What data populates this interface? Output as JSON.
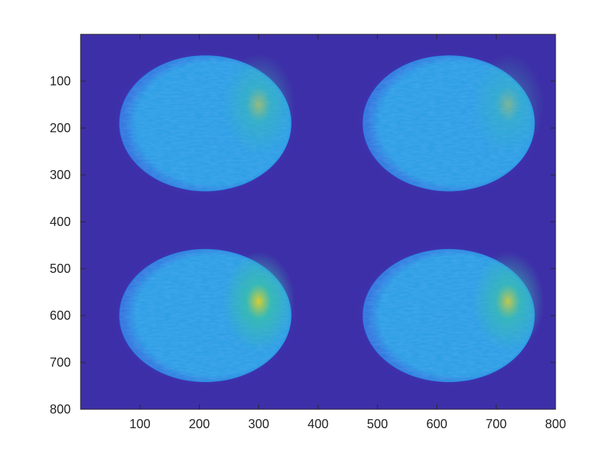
{
  "chart_data": {
    "type": "heatmap",
    "title": "",
    "xlabel": "",
    "ylabel": "",
    "xlim": [
      0,
      800
    ],
    "ylim": [
      0,
      800
    ],
    "y_reversed": true,
    "xticks": [
      "100",
      "200",
      "300",
      "400",
      "500",
      "600",
      "700",
      "800"
    ],
    "yticks": [
      "100",
      "200",
      "300",
      "400",
      "500",
      "600",
      "700",
      "800"
    ],
    "colormap": "parula",
    "colors": {
      "background": "#3d2fa8",
      "low": "#3b4fd9",
      "mid": "#2f9fe6",
      "high_teal": "#38c0a8",
      "peak": "#e2d02a",
      "axis": "#262626"
    },
    "spots": [
      {
        "name": "top-left-spot",
        "cx": 210,
        "cy": 190,
        "rx": 145,
        "ry": 145,
        "peak_x": 300,
        "peak_y": 150,
        "peak_intensity": 0.55
      },
      {
        "name": "top-right-spot",
        "cx": 620,
        "cy": 190,
        "rx": 145,
        "ry": 145,
        "peak_x": 720,
        "peak_y": 150,
        "peak_intensity": 0.4
      },
      {
        "name": "bottom-left-spot",
        "cx": 210,
        "cy": 600,
        "rx": 145,
        "ry": 142,
        "peak_x": 300,
        "peak_y": 570,
        "peak_intensity": 0.95
      },
      {
        "name": "bottom-right-spot",
        "cx": 620,
        "cy": 600,
        "rx": 145,
        "ry": 142,
        "peak_x": 720,
        "peak_y": 570,
        "peak_intensity": 0.8
      }
    ],
    "grid": false
  }
}
